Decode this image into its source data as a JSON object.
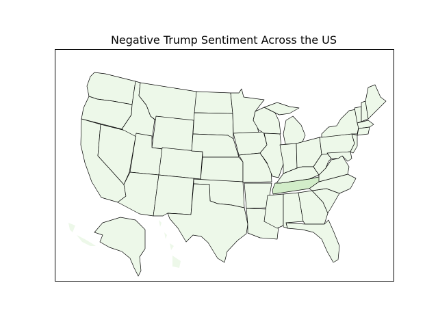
{
  "map": {
    "title": "Negative Trump Sentiment Across the US",
    "colors": {
      "background": "#ffffff",
      "base_fill": "#edf8e9",
      "highlight_fill": "#d2edc9",
      "outline": "#000000"
    },
    "highlighted_states": [
      "Tennessee"
    ]
  }
}
